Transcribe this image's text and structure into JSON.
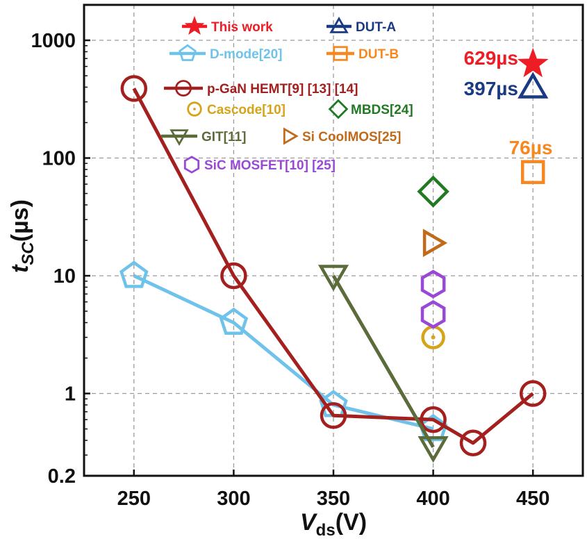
{
  "chart_data": {
    "type": "scatter",
    "xlabel": {
      "main": "V",
      "sub": "ds",
      "unit": "(V)"
    },
    "ylabel": {
      "main": "t",
      "sub": "SC",
      "unit": "(µs)"
    },
    "xlim": [
      225,
      475
    ],
    "ylim": [
      0.2,
      2000
    ],
    "yscale": "log",
    "x_ticks": [
      250,
      300,
      350,
      400,
      450
    ],
    "x_tick_labels": [
      "250",
      "300",
      "350",
      "400",
      "450"
    ],
    "y_ticks": [
      0.2,
      1,
      10,
      100,
      1000
    ],
    "y_tick_labels": [
      "0.2",
      "1",
      "10",
      "100",
      "1000"
    ],
    "grid": true,
    "legend_position": "top-left",
    "series": [
      {
        "name": "This work",
        "marker": "star",
        "color": "#ee1c25",
        "line": false,
        "points": [
          {
            "x": 450,
            "y": 629
          }
        ]
      },
      {
        "name": "DUT-A",
        "marker": "triangle-up",
        "color": "#1b3a84",
        "line": false,
        "points": [
          {
            "x": 450,
            "y": 397
          }
        ]
      },
      {
        "name": "D-mode[20]",
        "marker": "pentagon",
        "color": "#6fc3eb",
        "line": true,
        "points": [
          {
            "x": 250,
            "y": 10
          },
          {
            "x": 300,
            "y": 4
          },
          {
            "x": 350,
            "y": 0.8
          },
          {
            "x": 400,
            "y": 0.5
          }
        ]
      },
      {
        "name": "DUT-B",
        "marker": "square",
        "color": "#f7871f",
        "line": false,
        "points": [
          {
            "x": 450,
            "y": 76
          }
        ]
      },
      {
        "name": "p-GaN HEMT[9] [13] [14]",
        "marker": "circle",
        "color": "#a3201f",
        "line": true,
        "points": [
          {
            "x": 250,
            "y": 390
          },
          {
            "x": 300,
            "y": 10
          },
          {
            "x": 350,
            "y": 0.65
          },
          {
            "x": 400,
            "y": 0.6
          },
          {
            "x": 420,
            "y": 0.38
          },
          {
            "x": 450,
            "y": 1
          }
        ]
      },
      {
        "name": "Cascode[10]",
        "marker": "circle-dot",
        "color": "#d6a418",
        "line": false,
        "points": [
          {
            "x": 400,
            "y": 3
          }
        ]
      },
      {
        "name": "MBDS[24]",
        "marker": "diamond",
        "color": "#217a22",
        "line": false,
        "points": [
          {
            "x": 400,
            "y": 52
          }
        ]
      },
      {
        "name": "GIT[11]",
        "marker": "triangle-down",
        "color": "#5b6b3a",
        "line": true,
        "points": [
          {
            "x": 350,
            "y": 10
          },
          {
            "x": 400,
            "y": 0.35
          }
        ]
      },
      {
        "name": "Si CoolMOS[25]",
        "marker": "triangle-right",
        "color": "#c06a1a",
        "line": false,
        "points": [
          {
            "x": 400,
            "y": 19
          }
        ]
      },
      {
        "name": "SiC MOSFET[10] [25]",
        "marker": "hexagon",
        "color": "#9a48d6",
        "line": false,
        "points": [
          {
            "x": 400,
            "y": 8.5
          },
          {
            "x": 400,
            "y": 4.7
          }
        ]
      }
    ],
    "annotations": [
      {
        "text": "629µs",
        "color": "#ee1c25"
      },
      {
        "text": "397µs",
        "color": "#1b3a84"
      },
      {
        "text": "76µs",
        "color": "#f7871f"
      }
    ]
  }
}
